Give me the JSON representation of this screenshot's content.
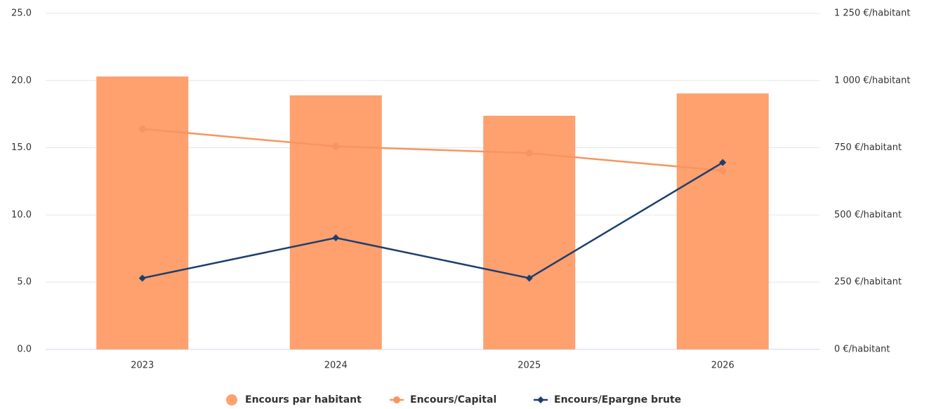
{
  "chart_data": {
    "type": "combo",
    "categories": [
      "2023",
      "2024",
      "2025",
      "2026"
    ],
    "series": [
      {
        "name": "Encours par habitant",
        "type": "bar",
        "axis": "y2",
        "color": "#ffa06f",
        "values": [
          1015,
          945,
          869,
          952
        ]
      },
      {
        "name": "Encours/Capital",
        "type": "line",
        "marker": "circle",
        "color": "#f79560",
        "values": [
          16.4,
          15.1,
          14.6,
          13.3
        ]
      },
      {
        "name": "Encours/Epargne brute",
        "type": "line",
        "marker": "diamond",
        "color": "#1c3f6e",
        "values": [
          5.3,
          8.3,
          5.3,
          13.9
        ]
      }
    ],
    "ylim": [
      0,
      25
    ],
    "yticks": [
      {
        "value": 0,
        "label": "0.0"
      },
      {
        "value": 5,
        "label": "5.0"
      },
      {
        "value": 10,
        "label": "10.0"
      },
      {
        "value": 15,
        "label": "15.0"
      },
      {
        "value": 20,
        "label": "20.0"
      },
      {
        "value": 25,
        "label": "25.0"
      }
    ],
    "y2lim": [
      0,
      1250
    ],
    "y2ticks": [
      {
        "value": 0,
        "label": "0 €/habitant"
      },
      {
        "value": 250,
        "label": "250 €/habitant"
      },
      {
        "value": 500,
        "label": "500 €/habitant"
      },
      {
        "value": 750,
        "label": "750 €/habitant"
      },
      {
        "value": 1000,
        "label": "1 000 €/habitant"
      },
      {
        "value": 1250,
        "label": "1 250 €/habitant"
      }
    ],
    "grid": true,
    "legend": "bottom"
  }
}
